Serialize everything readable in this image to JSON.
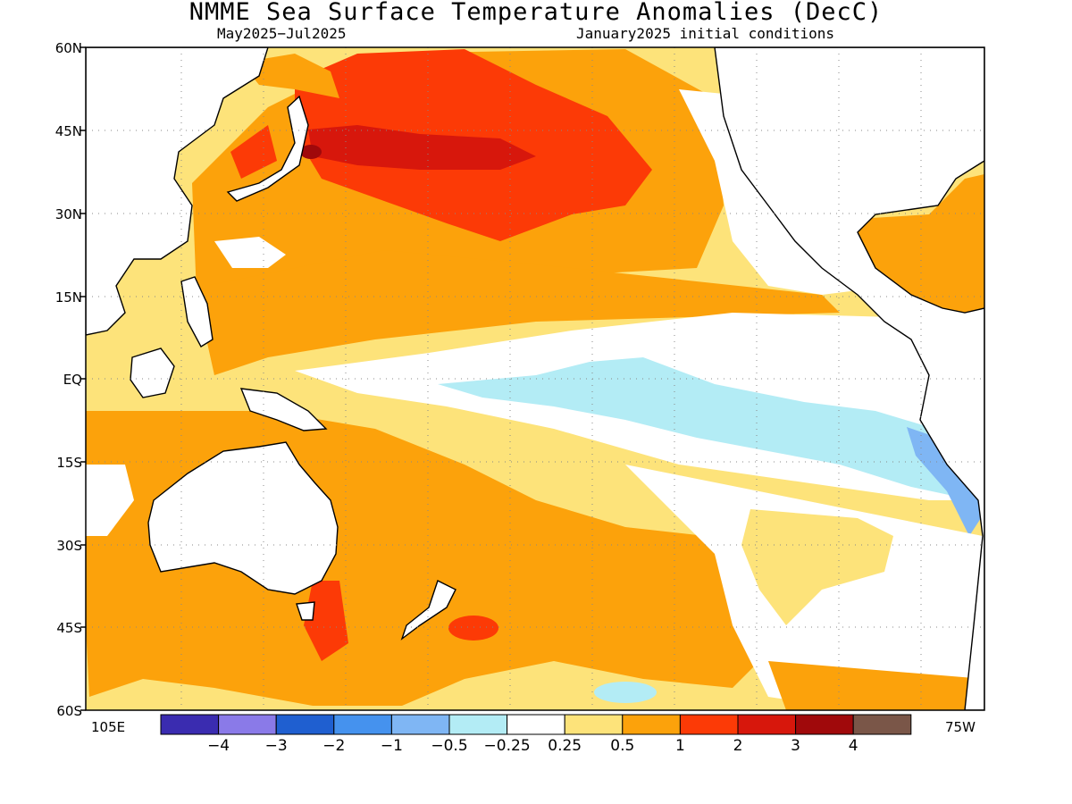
{
  "title": "NMME Sea Surface Temperature Anomalies (DecC)",
  "subtitle_left": "May2025−Jul2025",
  "subtitle_right": "January2025 initial conditions",
  "map": {
    "region": "Pacific Ocean",
    "lat_labels": [
      "60N",
      "45N",
      "30N",
      "15N",
      "EQ",
      "15S",
      "30S",
      "45S",
      "60S"
    ],
    "lon_labels": [
      "105E",
      "75W"
    ],
    "gridlines": "dotted"
  },
  "colorbar": {
    "labels": [
      "−4",
      "−3",
      "−2",
      "−1",
      "−0.5",
      "−0.25",
      "0.25",
      "0.5",
      "1",
      "2",
      "3",
      "4"
    ],
    "colors": [
      "#3a2cb0",
      "#8a7ae8",
      "#1f5fd0",
      "#4592ee",
      "#7fb6f4",
      "#b3ecf5",
      "#ffffff",
      "#fde37a",
      "#fca20b",
      "#fc3a06",
      "#d7170c",
      "#a0090b",
      "#7a5648"
    ]
  }
}
